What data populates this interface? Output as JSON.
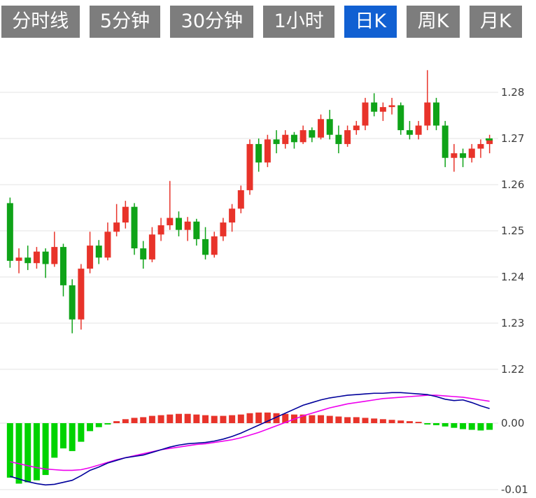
{
  "toolbar": {
    "active_index": 4,
    "tabs": [
      {
        "label": "分时线"
      },
      {
        "label": "5分钟"
      },
      {
        "label": "30分钟"
      },
      {
        "label": "1小时"
      },
      {
        "label": "日K"
      },
      {
        "label": "周K"
      },
      {
        "label": "月K"
      }
    ]
  },
  "colors": {
    "tab_bg": "#7d7d7d",
    "tab_active_bg": "#1160d2",
    "tab_text": "#ffffff",
    "candle_up": "#e8332a",
    "candle_down": "#0fa318",
    "hist_up": "#e8332a",
    "hist_down": "#00d300",
    "dif_line": "#00009b",
    "dea_line": "#ee00ee",
    "grid": "#e3e3e3",
    "axis_text": "#3c3c3c"
  },
  "chart_data": {
    "type": "candlestick_with_macd",
    "title": "",
    "timeframe_selected": "日K",
    "price_axis": {
      "labels": [
        "1.28",
        "1.27",
        "1.26",
        "1.25",
        "1.24",
        "1.23",
        "1.22"
      ],
      "min": 1.2175,
      "max": 1.2875,
      "grid": true,
      "position": "right"
    },
    "macd_axis": {
      "labels": [
        "0.00",
        "-0.01"
      ],
      "min": -0.0113,
      "max": 0.0053,
      "grid": true,
      "position": "right"
    },
    "last_close_marker": 1.2698,
    "candles_ohlc": [
      [
        1.256,
        1.2572,
        1.242,
        1.2435
      ],
      [
        1.2435,
        1.2462,
        1.2408,
        1.2442
      ],
      [
        1.2442,
        1.2468,
        1.2415,
        1.243
      ],
      [
        1.243,
        1.2465,
        1.2418,
        1.2455
      ],
      [
        1.2455,
        1.2462,
        1.2398,
        1.2428
      ],
      [
        1.2428,
        1.2498,
        1.2422,
        1.2465
      ],
      [
        1.2465,
        1.2472,
        1.2358,
        1.2382
      ],
      [
        1.2382,
        1.2395,
        1.2278,
        1.2308
      ],
      [
        1.2308,
        1.2428,
        1.2286,
        1.2418
      ],
      [
        1.2418,
        1.2498,
        1.2408,
        1.2468
      ],
      [
        1.2468,
        1.248,
        1.2428,
        1.2442
      ],
      [
        1.2442,
        1.2518,
        1.2436,
        1.2498
      ],
      [
        1.2498,
        1.2558,
        1.2488,
        1.2518
      ],
      [
        1.2518,
        1.2565,
        1.2505,
        1.2552
      ],
      [
        1.2552,
        1.256,
        1.2448,
        1.2462
      ],
      [
        1.2462,
        1.2478,
        1.2418,
        1.2438
      ],
      [
        1.2438,
        1.2508,
        1.2432,
        1.2492
      ],
      [
        1.2492,
        1.2528,
        1.2478,
        1.2512
      ],
      [
        1.2512,
        1.2608,
        1.2502,
        1.2528
      ],
      [
        1.2528,
        1.2542,
        1.2488,
        1.2502
      ],
      [
        1.2502,
        1.253,
        1.2478,
        1.252
      ],
      [
        1.252,
        1.2526,
        1.2468,
        1.2482
      ],
      [
        1.2482,
        1.2508,
        1.2438,
        1.2448
      ],
      [
        1.2448,
        1.2498,
        1.2442,
        1.2488
      ],
      [
        1.2488,
        1.2528,
        1.2478,
        1.2518
      ],
      [
        1.2518,
        1.2558,
        1.2498,
        1.2548
      ],
      [
        1.2548,
        1.2598,
        1.2538,
        1.2588
      ],
      [
        1.2588,
        1.2698,
        1.2578,
        1.2688
      ],
      [
        1.2688,
        1.27,
        1.2628,
        1.2648
      ],
      [
        1.2648,
        1.2708,
        1.2638,
        1.2698
      ],
      [
        1.2698,
        1.2718,
        1.2668,
        1.2688
      ],
      [
        1.2688,
        1.2718,
        1.2678,
        1.2708
      ],
      [
        1.2708,
        1.2714,
        1.2678,
        1.2692
      ],
      [
        1.2692,
        1.2728,
        1.2688,
        1.2718
      ],
      [
        1.2718,
        1.2724,
        1.2692,
        1.2702
      ],
      [
        1.2702,
        1.2752,
        1.2698,
        1.2742
      ],
      [
        1.2742,
        1.2762,
        1.2698,
        1.2708
      ],
      [
        1.2708,
        1.2728,
        1.2668,
        1.2688
      ],
      [
        1.2688,
        1.2728,
        1.2682,
        1.2718
      ],
      [
        1.2718,
        1.2738,
        1.2708,
        1.2728
      ],
      [
        1.2728,
        1.2788,
        1.2718,
        1.2778
      ],
      [
        1.2778,
        1.2798,
        1.2748,
        1.2758
      ],
      [
        1.2758,
        1.2778,
        1.2738,
        1.2768
      ],
      [
        1.2768,
        1.2788,
        1.2752,
        1.2772
      ],
      [
        1.2772,
        1.2778,
        1.2708,
        1.2718
      ],
      [
        1.2718,
        1.2738,
        1.2698,
        1.2708
      ],
      [
        1.2708,
        1.2738,
        1.2698,
        1.2728
      ],
      [
        1.2728,
        1.2848,
        1.2718,
        1.2778
      ],
      [
        1.2778,
        1.2788,
        1.2718,
        1.2728
      ],
      [
        1.2728,
        1.2738,
        1.2638,
        1.2658
      ],
      [
        1.2658,
        1.2688,
        1.2628,
        1.2668
      ],
      [
        1.2668,
        1.2678,
        1.2638,
        1.2658
      ],
      [
        1.2658,
        1.2688,
        1.2648,
        1.2678
      ],
      [
        1.2678,
        1.2698,
        1.2658,
        1.2688
      ],
      [
        1.2688,
        1.2708,
        1.2668,
        1.2698
      ]
    ],
    "macd": {
      "histogram": [
        -0.0082,
        -0.0091,
        -0.0089,
        -0.0086,
        -0.0078,
        -0.0052,
        -0.0038,
        -0.0042,
        -0.0028,
        -0.0012,
        -0.0006,
        -0.0002,
        0.0003,
        0.0006,
        0.0008,
        0.0009,
        0.0011,
        0.0012,
        0.0013,
        0.0014,
        0.0014,
        0.0013,
        0.0012,
        0.0011,
        0.0011,
        0.0012,
        0.0013,
        0.0015,
        0.0016,
        0.0016,
        0.0015,
        0.0014,
        0.0013,
        0.0013,
        0.0012,
        0.0012,
        0.0011,
        0.001,
        0.0009,
        0.0009,
        0.0008,
        0.0007,
        0.0006,
        0.0005,
        0.0004,
        0.0003,
        0.0002,
        -0.0002,
        -0.0003,
        -0.0005,
        -0.0007,
        -0.0009,
        -0.001,
        -0.0011,
        -0.001
      ],
      "dif": [
        -0.008,
        -0.0084,
        -0.0088,
        -0.0091,
        -0.0093,
        -0.0092,
        -0.0089,
        -0.0086,
        -0.0079,
        -0.0071,
        -0.0066,
        -0.006,
        -0.0056,
        -0.0052,
        -0.005,
        -0.0048,
        -0.0044,
        -0.004,
        -0.0036,
        -0.0033,
        -0.0031,
        -0.003,
        -0.0029,
        -0.0027,
        -0.0024,
        -0.002,
        -0.0015,
        -0.0009,
        -0.0003,
        0.0003,
        0.0009,
        0.0015,
        0.0021,
        0.0027,
        0.0031,
        0.0035,
        0.0038,
        0.004,
        0.0042,
        0.0043,
        0.0044,
        0.0045,
        0.0045,
        0.0046,
        0.0046,
        0.0045,
        0.0044,
        0.0043,
        0.004,
        0.0036,
        0.0034,
        0.0035,
        0.0031,
        0.0026,
        0.0022
      ],
      "dea": [
        -0.0058,
        -0.0061,
        -0.0064,
        -0.0067,
        -0.0069,
        -0.007,
        -0.0071,
        -0.0071,
        -0.007,
        -0.0067,
        -0.0063,
        -0.0059,
        -0.0055,
        -0.0052,
        -0.0049,
        -0.0046,
        -0.0043,
        -0.004,
        -0.0038,
        -0.0036,
        -0.0034,
        -0.0032,
        -0.0031,
        -0.0029,
        -0.0027,
        -0.0025,
        -0.0022,
        -0.0018,
        -0.0014,
        -0.0009,
        -0.0004,
        0.0001,
        0.0006,
        0.0011,
        0.0015,
        0.0019,
        0.0023,
        0.0026,
        0.0029,
        0.0031,
        0.0033,
        0.0035,
        0.0037,
        0.0038,
        0.0039,
        0.004,
        0.0041,
        0.0042,
        0.0042,
        0.0041,
        0.004,
        0.0039,
        0.0037,
        0.0035,
        0.0033
      ]
    }
  }
}
